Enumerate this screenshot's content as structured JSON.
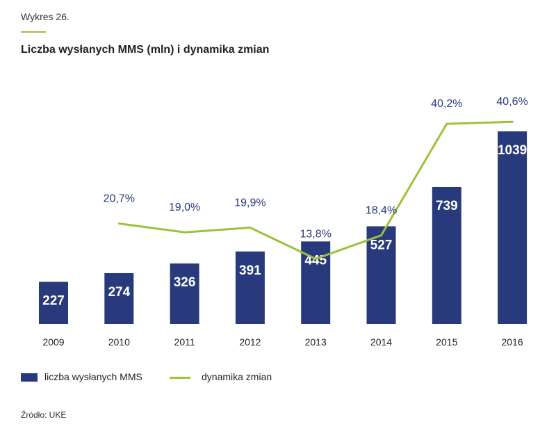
{
  "header": {
    "chart_number": "Wykres 26.",
    "title": "Liczba wysłanych MMS (mln) i dynamika zmian"
  },
  "legend": {
    "bar_label": "liczba wysłanych MMS",
    "line_label": "dynamika zmian"
  },
  "source": "Źródło: UKE",
  "colors": {
    "bar": "#283a7b",
    "line": "#9cc13b",
    "accent": "#9cc13b"
  },
  "chart_data": {
    "type": "bar",
    "title": "Liczba wysłanych MMS (mln) i dynamika zmian",
    "categories": [
      "2009",
      "2010",
      "2011",
      "2012",
      "2013",
      "2014",
      "2015",
      "2016"
    ],
    "series": [
      {
        "name": "liczba wysłanych MMS",
        "type": "bar",
        "values": [
          227,
          274,
          326,
          391,
          445,
          527,
          739,
          1039
        ],
        "labels": [
          "227",
          "274",
          "326",
          "391",
          "445",
          "527",
          "739",
          "1039"
        ]
      },
      {
        "name": "dynamika zmian",
        "type": "line",
        "values": [
          null,
          20.7,
          19.0,
          19.9,
          13.8,
          18.4,
          40.2,
          40.6
        ],
        "labels": [
          "",
          "20,7%",
          "19,0%",
          "19,9%",
          "13,8%",
          "18,4%",
          "40,2%",
          "40,6%"
        ]
      }
    ],
    "xlabel": "",
    "ylabel": "",
    "grid": false,
    "legend_position": "bottom-left"
  }
}
